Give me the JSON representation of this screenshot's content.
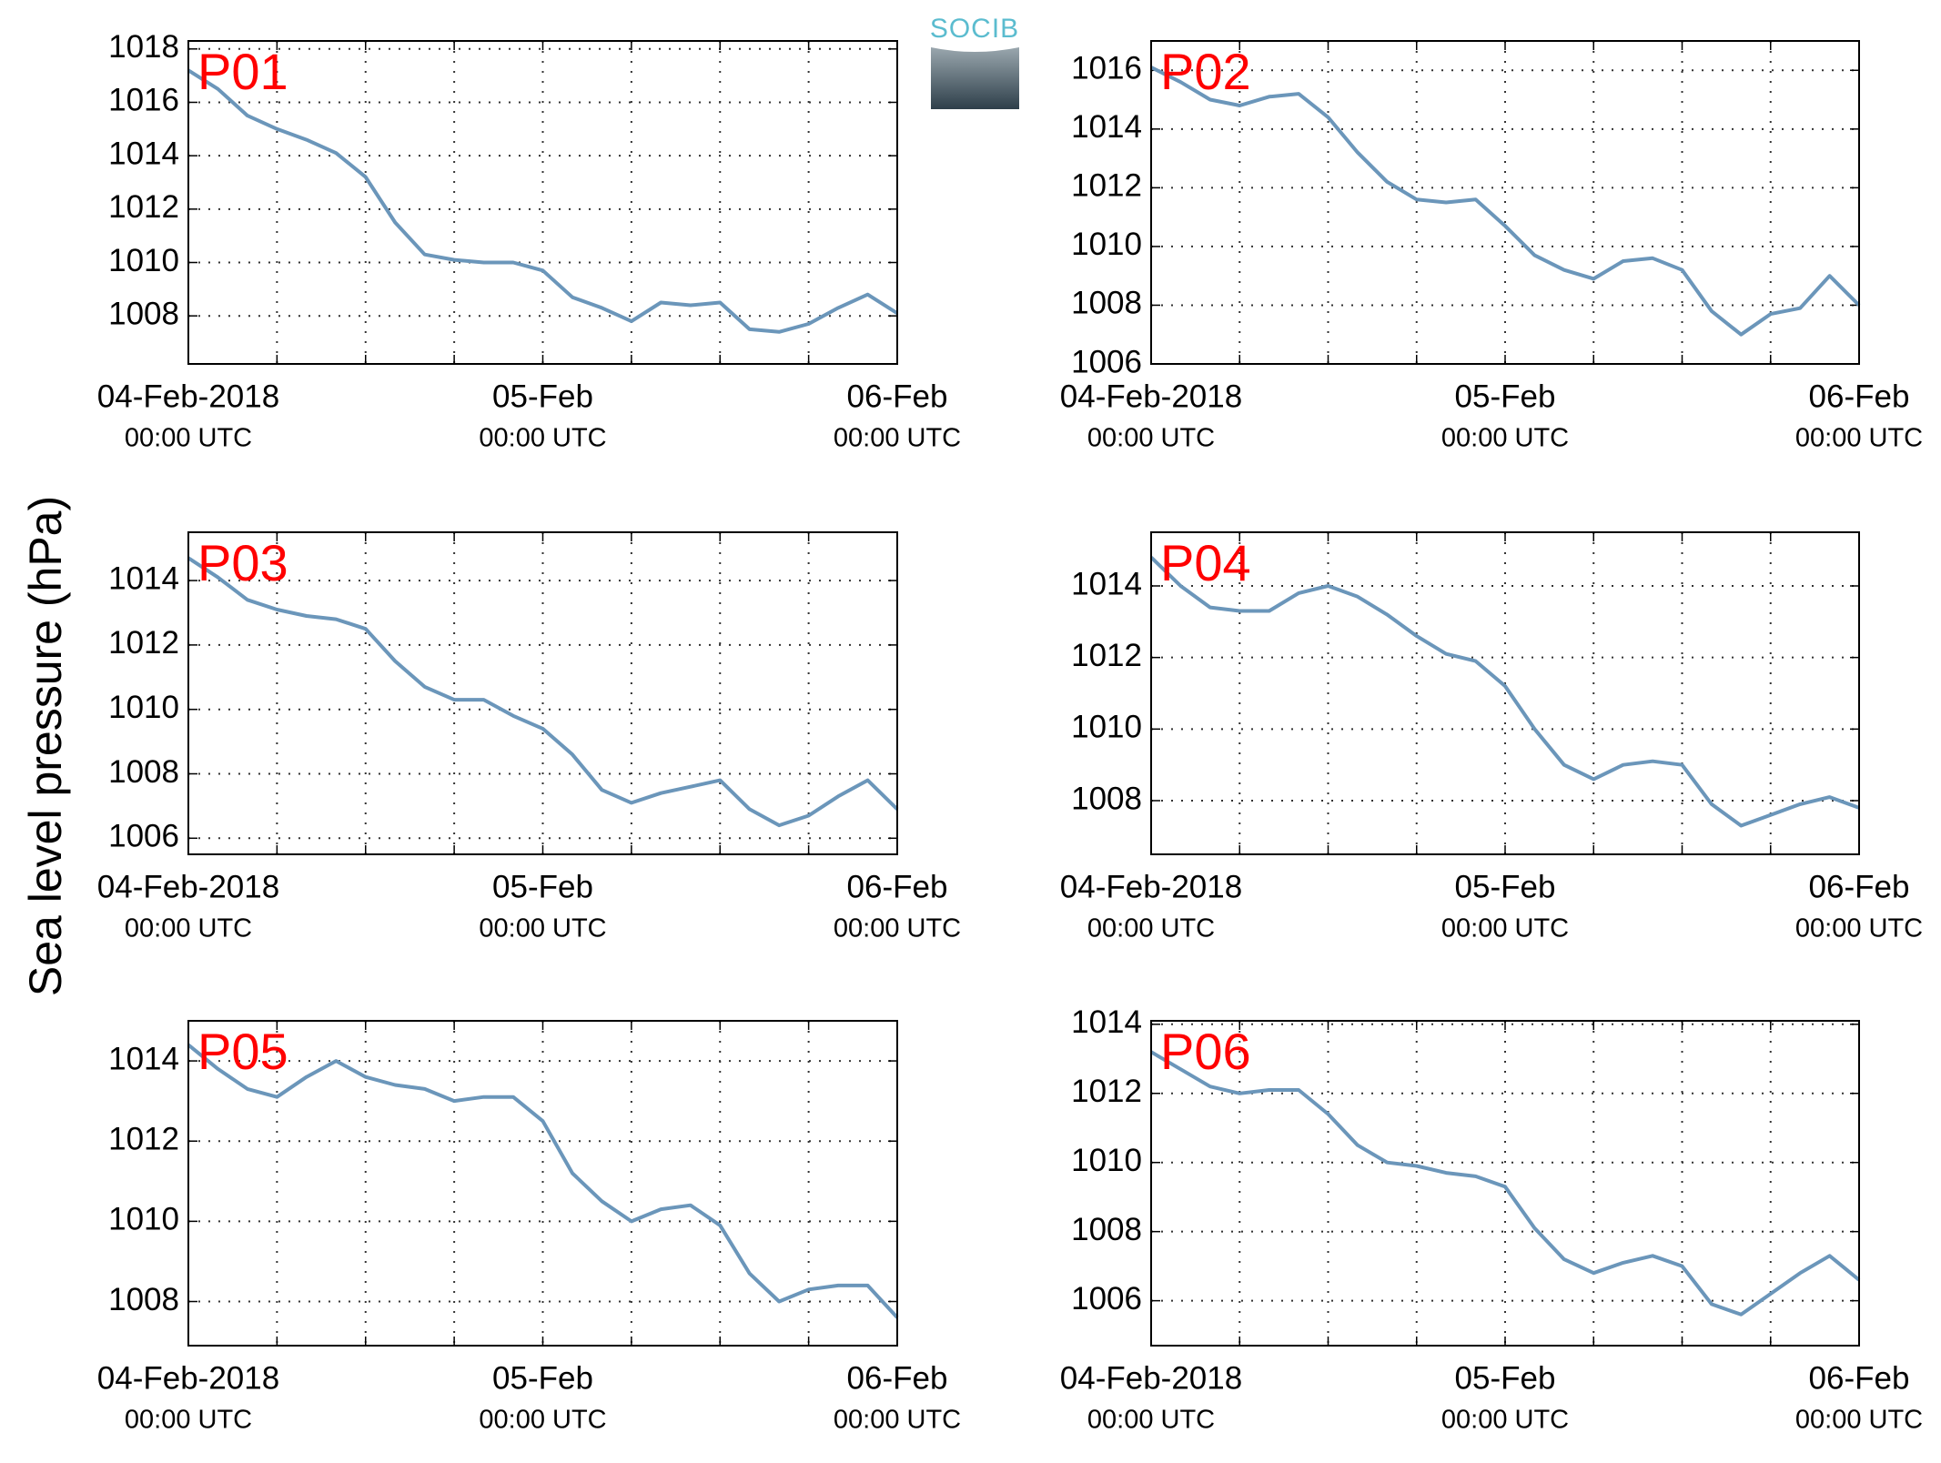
{
  "ylabel": "Sea level pressure (hPa)",
  "logo": "SOCIB",
  "chart_data": [
    {
      "type": "line",
      "label": "P01",
      "color": "#6b96ba",
      "xlim": [
        0,
        48
      ],
      "ylim": [
        1006.2,
        1018.3
      ],
      "grid": true,
      "yticks": [
        1008,
        1010,
        1012,
        1014,
        1016,
        1018
      ],
      "xticks": [
        {
          "value": 0,
          "label": "04-Feb-2018"
        },
        {
          "value": 24,
          "label": "05-Feb"
        },
        {
          "value": 48,
          "label": "06-Feb"
        }
      ],
      "xtick_sublabels": [
        "00:00 UTC",
        "00:00 UTC",
        "00:00 UTC"
      ],
      "xminor": [
        6,
        12,
        18,
        30,
        36,
        42
      ],
      "x": [
        0,
        2,
        4,
        6,
        8,
        10,
        12,
        14,
        16,
        18,
        20,
        22,
        24,
        26,
        28,
        30,
        32,
        34,
        36,
        38,
        40,
        42,
        44,
        46,
        48
      ],
      "values": [
        1017.2,
        1016.5,
        1015.5,
        1015,
        1014.6,
        1014.1,
        1013.2,
        1011.5,
        1010.3,
        1010.1,
        1010,
        1010,
        1009.7,
        1008.7,
        1008.3,
        1007.8,
        1008.5,
        1008.4,
        1008.5,
        1007.5,
        1007.4,
        1007.7,
        1008.3,
        1008.8,
        1008.1
      ]
    },
    {
      "type": "line",
      "label": "P02",
      "color": "#6b96ba",
      "xlim": [
        0,
        48
      ],
      "ylim": [
        1006,
        1017
      ],
      "grid": true,
      "yticks": [
        1006,
        1008,
        1010,
        1012,
        1014,
        1016
      ],
      "xticks": [
        {
          "value": 0,
          "label": "04-Feb-2018"
        },
        {
          "value": 24,
          "label": "05-Feb"
        },
        {
          "value": 48,
          "label": "06-Feb"
        }
      ],
      "xtick_sublabels": [
        "00:00 UTC",
        "00:00 UTC",
        "00:00 UTC"
      ],
      "xminor": [
        6,
        12,
        18,
        30,
        36,
        42
      ],
      "x": [
        0,
        2,
        4,
        6,
        8,
        10,
        12,
        14,
        16,
        18,
        20,
        22,
        24,
        26,
        28,
        30,
        32,
        34,
        36,
        38,
        40,
        42,
        44,
        46,
        48
      ],
      "values": [
        1016.1,
        1015.6,
        1015,
        1014.8,
        1015.1,
        1015.2,
        1014.4,
        1013.2,
        1012.2,
        1011.6,
        1011.5,
        1011.6,
        1010.7,
        1009.7,
        1009.2,
        1008.9,
        1009.5,
        1009.6,
        1009.2,
        1007.8,
        1007,
        1007.7,
        1007.9,
        1009,
        1008
      ]
    },
    {
      "type": "line",
      "label": "P03",
      "color": "#6b96ba",
      "xlim": [
        0,
        48
      ],
      "ylim": [
        1005.5,
        1015.5
      ],
      "grid": true,
      "yticks": [
        1006,
        1008,
        1010,
        1012,
        1014
      ],
      "xticks": [
        {
          "value": 0,
          "label": "04-Feb-2018"
        },
        {
          "value": 24,
          "label": "05-Feb"
        },
        {
          "value": 48,
          "label": "06-Feb"
        }
      ],
      "xtick_sublabels": [
        "00:00 UTC",
        "00:00 UTC",
        "00:00 UTC"
      ],
      "xminor": [
        6,
        12,
        18,
        30,
        36,
        42
      ],
      "x": [
        0,
        2,
        4,
        6,
        8,
        10,
        12,
        14,
        16,
        18,
        20,
        22,
        24,
        26,
        28,
        30,
        32,
        34,
        36,
        38,
        40,
        42,
        44,
        46,
        48
      ],
      "values": [
        1014.7,
        1014.1,
        1013.4,
        1013.1,
        1012.9,
        1012.8,
        1012.5,
        1011.5,
        1010.7,
        1010.3,
        1010.3,
        1009.8,
        1009.4,
        1008.6,
        1007.5,
        1007.1,
        1007.4,
        1007.6,
        1007.8,
        1006.9,
        1006.4,
        1006.7,
        1007.3,
        1007.8,
        1006.9
      ]
    },
    {
      "type": "line",
      "label": "P04",
      "color": "#6b96ba",
      "xlim": [
        0,
        48
      ],
      "ylim": [
        1006.5,
        1015.5
      ],
      "grid": true,
      "yticks": [
        1008,
        1010,
        1012,
        1014
      ],
      "xticks": [
        {
          "value": 0,
          "label": "04-Feb-2018"
        },
        {
          "value": 24,
          "label": "05-Feb"
        },
        {
          "value": 48,
          "label": "06-Feb"
        }
      ],
      "xtick_sublabels": [
        "00:00 UTC",
        "00:00 UTC",
        "00:00 UTC"
      ],
      "xminor": [
        6,
        12,
        18,
        30,
        36,
        42
      ],
      "x": [
        0,
        2,
        4,
        6,
        8,
        10,
        12,
        14,
        16,
        18,
        20,
        22,
        24,
        26,
        28,
        30,
        32,
        34,
        36,
        38,
        40,
        42,
        44,
        46,
        48
      ],
      "values": [
        1014.8,
        1014,
        1013.4,
        1013.3,
        1013.3,
        1013.8,
        1014,
        1013.7,
        1013.2,
        1012.6,
        1012.1,
        1011.9,
        1011.2,
        1010,
        1009,
        1008.6,
        1009,
        1009.1,
        1009,
        1007.9,
        1007.3,
        1007.6,
        1007.9,
        1008.1,
        1007.8
      ]
    },
    {
      "type": "line",
      "label": "P05",
      "color": "#6b96ba",
      "xlim": [
        0,
        48
      ],
      "ylim": [
        1006.9,
        1015
      ],
      "grid": true,
      "yticks": [
        1008,
        1010,
        1012,
        1014
      ],
      "xticks": [
        {
          "value": 0,
          "label": "04-Feb-2018"
        },
        {
          "value": 24,
          "label": "05-Feb"
        },
        {
          "value": 48,
          "label": "06-Feb"
        }
      ],
      "xtick_sublabels": [
        "00:00 UTC",
        "00:00 UTC",
        "00:00 UTC"
      ],
      "xminor": [
        6,
        12,
        18,
        30,
        36,
        42
      ],
      "x": [
        0,
        2,
        4,
        6,
        8,
        10,
        12,
        14,
        16,
        18,
        20,
        22,
        24,
        26,
        28,
        30,
        32,
        34,
        36,
        38,
        40,
        42,
        44,
        46,
        48
      ],
      "values": [
        1014.4,
        1013.8,
        1013.3,
        1013.1,
        1013.6,
        1014,
        1013.6,
        1013.4,
        1013.3,
        1013,
        1013.1,
        1013.1,
        1012.5,
        1011.2,
        1010.5,
        1010,
        1010.3,
        1010.4,
        1009.9,
        1008.7,
        1008,
        1008.3,
        1008.4,
        1008.4,
        1007.6
      ]
    },
    {
      "type": "line",
      "label": "P06",
      "color": "#6b96ba",
      "xlim": [
        0,
        48
      ],
      "ylim": [
        1004.7,
        1014.1
      ],
      "grid": true,
      "yticks": [
        1006,
        1008,
        1010,
        1012,
        1014
      ],
      "xticks": [
        {
          "value": 0,
          "label": "04-Feb-2018"
        },
        {
          "value": 24,
          "label": "05-Feb"
        },
        {
          "value": 48,
          "label": "06-Feb"
        }
      ],
      "xtick_sublabels": [
        "00:00 UTC",
        "00:00 UTC",
        "00:00 UTC"
      ],
      "xminor": [
        6,
        12,
        18,
        30,
        36,
        42
      ],
      "x": [
        0,
        2,
        4,
        6,
        8,
        10,
        12,
        14,
        16,
        18,
        20,
        22,
        24,
        26,
        28,
        30,
        32,
        34,
        36,
        38,
        40,
        42,
        44,
        46,
        48
      ],
      "values": [
        1013.2,
        1012.7,
        1012.2,
        1012,
        1012.1,
        1012.1,
        1011.4,
        1010.5,
        1010,
        1009.9,
        1009.7,
        1009.6,
        1009.3,
        1008.1,
        1007.2,
        1006.8,
        1007.1,
        1007.3,
        1007,
        1005.9,
        1005.6,
        1006.2,
        1006.8,
        1007.3,
        1006.6
      ]
    }
  ]
}
